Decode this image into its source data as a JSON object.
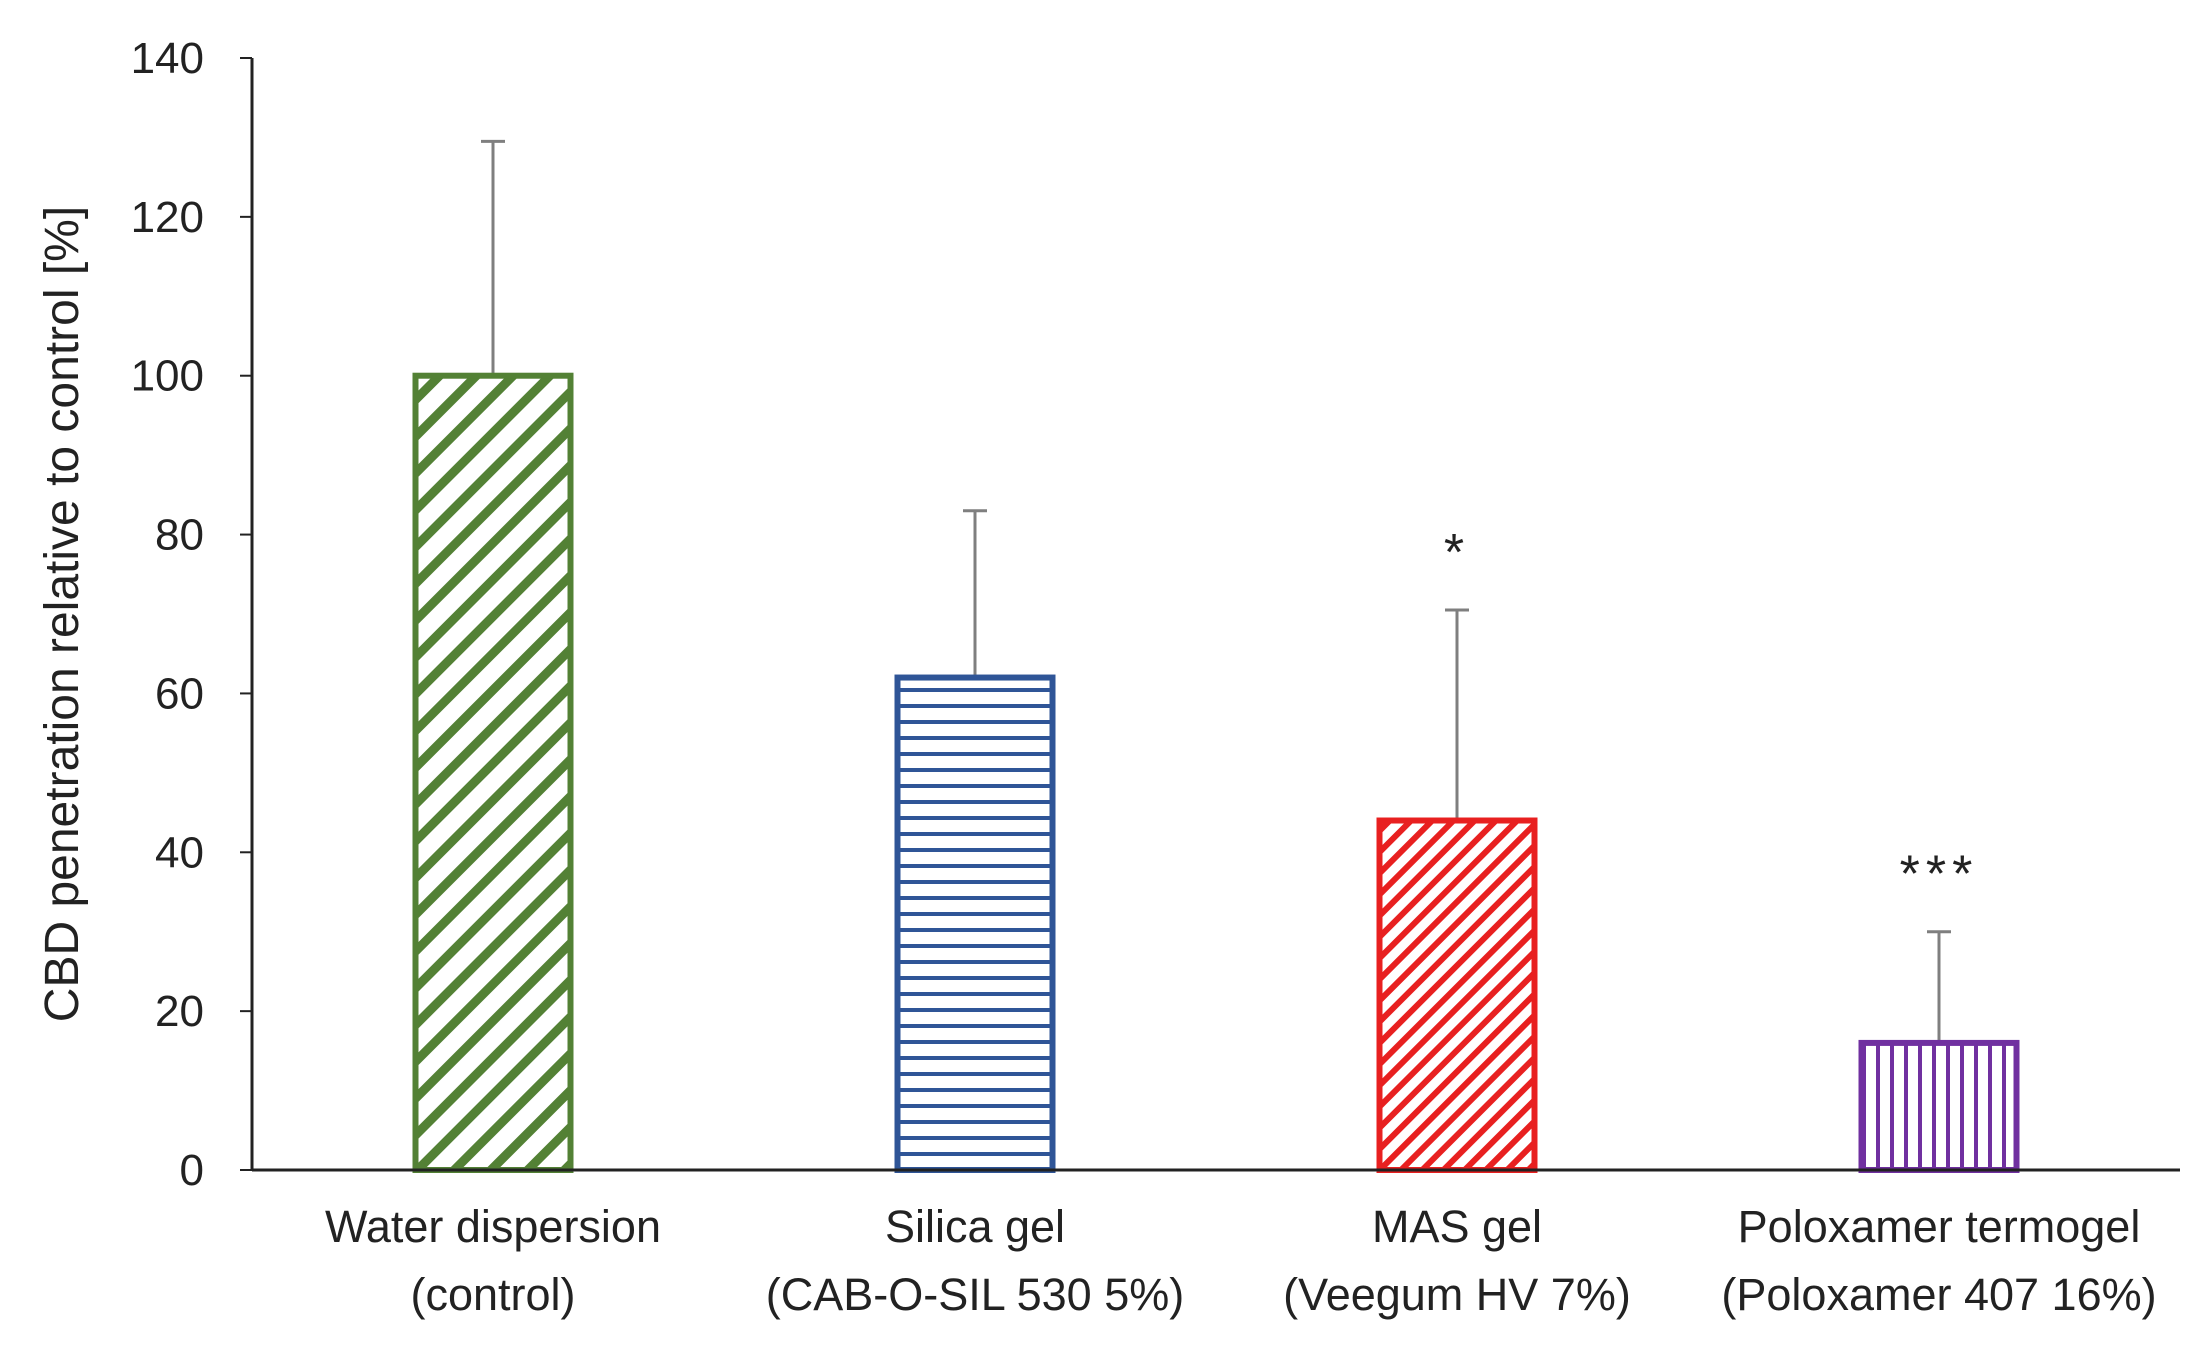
{
  "chart_data": {
    "type": "bar",
    "title": "",
    "xlabel": "",
    "ylabel": "CBD penetration relative to control [%]",
    "ylim": [
      0,
      140
    ],
    "yticks": [
      "0",
      "20",
      "40",
      "60",
      "80",
      "100",
      "120",
      "140"
    ],
    "categories": [
      {
        "line1": "Water dispersion",
        "line2": "(control)"
      },
      {
        "line1": "Silica gel",
        "line2": "(CAB-O-SIL 530 5%)"
      },
      {
        "line1": "MAS gel",
        "line2": "(Veegum HV 7%)"
      },
      {
        "line1": "Poloxamer termogel",
        "line2": "(Poloxamer 407 16%)"
      }
    ],
    "values": [
      100,
      62,
      44,
      16
    ],
    "error_upper": [
      129.5,
      83,
      70.5,
      30
    ],
    "significance": [
      "",
      "",
      "*",
      "***"
    ],
    "colors": [
      "#538135",
      "#2F5597",
      "#E82020",
      "#7030A0"
    ],
    "patterns": [
      "diagonal",
      "horizontal",
      "diagonal-dense",
      "vertical"
    ],
    "error_bar_color": "#7f7f7f",
    "axis_color": "#222222",
    "grid": false
  }
}
